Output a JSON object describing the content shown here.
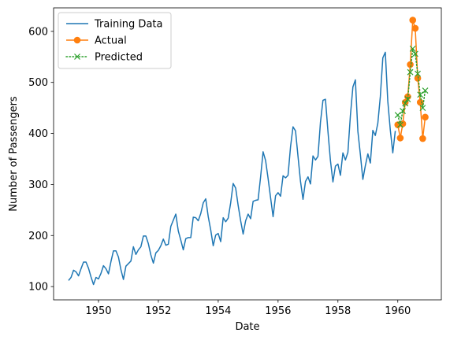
{
  "chart_data": {
    "type": "line",
    "title": "",
    "xlabel": "Date",
    "ylabel": "Number of Passengers",
    "xlim": [
      "1948-07-01",
      "1961-06-15"
    ],
    "ylim": [
      74,
      646
    ],
    "x_ticks": [
      {
        "value": "1950-01-01",
        "label": "1950"
      },
      {
        "value": "1952-01-01",
        "label": "1952"
      },
      {
        "value": "1954-01-01",
        "label": "1954"
      },
      {
        "value": "1956-01-01",
        "label": "1956"
      },
      {
        "value": "1958-01-01",
        "label": "1958"
      },
      {
        "value": "1960-01-01",
        "label": "1960"
      }
    ],
    "y_ticks": [
      100,
      200,
      300,
      400,
      500,
      600
    ],
    "grid": false,
    "legend": "upper-left",
    "series": [
      {
        "name": "Training Data",
        "color": "#1f77b4",
        "style": "solid",
        "marker": "none",
        "start": "1949-01",
        "freq": "monthly",
        "values": [
          112,
          118,
          132,
          129,
          121,
          135,
          148,
          148,
          136,
          119,
          104,
          118,
          115,
          126,
          141,
          135,
          125,
          149,
          170,
          170,
          158,
          133,
          114,
          140,
          145,
          150,
          178,
          163,
          172,
          178,
          199,
          199,
          184,
          162,
          146,
          166,
          171,
          180,
          193,
          181,
          183,
          218,
          230,
          242,
          209,
          191,
          172,
          194,
          196,
          196,
          236,
          235,
          229,
          243,
          264,
          272,
          237,
          211,
          180,
          201,
          204,
          188,
          235,
          227,
          234,
          264,
          302,
          293,
          259,
          229,
          203,
          229,
          242,
          233,
          267,
          269,
          270,
          315,
          364,
          347,
          312,
          274,
          237,
          278,
          284,
          277,
          317,
          313,
          318,
          374,
          413,
          405,
          355,
          306,
          271,
          306,
          315,
          301,
          356,
          348,
          355,
          422,
          465,
          467,
          404,
          347,
          305,
          336,
          340,
          318,
          362,
          348,
          363,
          435,
          491,
          505,
          404,
          359,
          310,
          337,
          360,
          342,
          406,
          396,
          420,
          472,
          548,
          559,
          463,
          407,
          362,
          405
        ]
      },
      {
        "name": "Actual",
        "color": "#ff7f0e",
        "style": "solid",
        "marker": "circle",
        "start": "1960-01",
        "freq": "monthly",
        "values": [
          417,
          391,
          419,
          461,
          472,
          535,
          622,
          606,
          508,
          461,
          390,
          432
        ]
      },
      {
        "name": "Predicted",
        "color": "#2ca02c",
        "style": "dotted",
        "marker": "x",
        "start": "1960-01",
        "freq": "monthly",
        "values": [
          436,
          417,
          444,
          459,
          467,
          520,
          566,
          556,
          517,
          476,
          450,
          484
        ]
      }
    ]
  }
}
